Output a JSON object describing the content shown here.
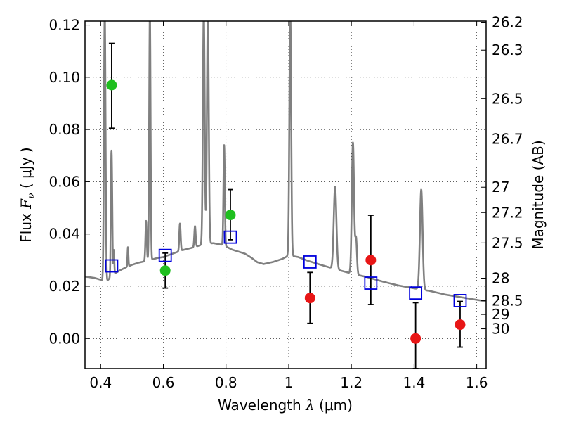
{
  "chart_data": {
    "type": "scatter",
    "title": "",
    "xlabel_pre": "Wavelength  ",
    "xlabel_sym": "λ",
    "xlabel_post": " (μm)",
    "ylabel_pre": "Flux  ",
    "ylabel_sym": "F",
    "ylabel_sub": "ν",
    "ylabel_post": "  ( μJy )",
    "ylabel_right": "Magnitude (AB)",
    "xlim": [
      0.35,
      1.63
    ],
    "ylim": [
      -0.0115,
      0.1215
    ],
    "x_ticks": [
      0.4,
      0.6,
      0.8,
      1.0,
      1.2,
      1.4,
      1.6
    ],
    "x_tick_labels": [
      "0.4",
      "0.6",
      "0.8",
      "1",
      "1.2",
      "1.4",
      "1.6"
    ],
    "y_ticks": [
      0.0,
      0.02,
      0.04,
      0.06,
      0.08,
      0.1,
      0.12
    ],
    "y_tick_labels": [
      "0.00",
      "0.02",
      "0.04",
      "0.06",
      "0.08",
      "0.10",
      "0.12"
    ],
    "mag_ticks": [
      {
        "label": "26.2",
        "flux": 0.1211
      },
      {
        "label": "26.3",
        "flux": 0.1104
      },
      {
        "label": "26.5",
        "flux": 0.0918
      },
      {
        "label": "26.7",
        "flux": 0.0764
      },
      {
        "label": "27",
        "flux": 0.0579
      },
      {
        "label": "27.2",
        "flux": 0.0482
      },
      {
        "label": "27.5",
        "flux": 0.0366
      },
      {
        "label": "28",
        "flux": 0.0231
      },
      {
        "label": "28.5",
        "flux": 0.0145
      },
      {
        "label": "29",
        "flux": 0.0092
      },
      {
        "label": "30",
        "flux": 0.0037
      }
    ],
    "grid": true,
    "series": [
      {
        "marker": "circle",
        "color": "#1fbf1f",
        "points": [
          {
            "x": 0.435,
            "y": 0.097,
            "err_low": 0.0805,
            "err_high": 0.113
          },
          {
            "x": 0.606,
            "y": 0.026,
            "err_low": 0.0193,
            "err_high": 0.0327
          },
          {
            "x": 0.814,
            "y": 0.0473,
            "err_low": 0.0378,
            "err_high": 0.057
          }
        ]
      },
      {
        "marker": "circle",
        "color": "#e81616",
        "points": [
          {
            "x": 1.068,
            "y": 0.0155,
            "err_low": 0.0058,
            "err_high": 0.0253
          },
          {
            "x": 1.262,
            "y": 0.03,
            "err_low": 0.013,
            "err_high": 0.0472
          },
          {
            "x": 1.405,
            "y": 0.0,
            "err_low": -0.0115,
            "err_high": 0.0137
          },
          {
            "x": 1.547,
            "y": 0.0053,
            "err_low": -0.0033,
            "err_high": 0.0142
          }
        ]
      },
      {
        "marker": "square",
        "color": "#0000dd",
        "points": [
          {
            "x": 0.435,
            "y": 0.0278
          },
          {
            "x": 0.606,
            "y": 0.0318
          },
          {
            "x": 0.814,
            "y": 0.0388
          },
          {
            "x": 1.068,
            "y": 0.0293
          },
          {
            "x": 1.262,
            "y": 0.0212
          },
          {
            "x": 1.405,
            "y": 0.0174
          },
          {
            "x": 1.547,
            "y": 0.0145
          }
        ]
      }
    ],
    "model": {
      "color": "#808080",
      "continuum": [
        [
          0.35,
          0.0237
        ],
        [
          0.38,
          0.0232
        ],
        [
          0.4,
          0.0225
        ],
        [
          0.415,
          0.0215
        ],
        [
          0.42,
          0.022
        ],
        [
          0.44,
          0.0245
        ],
        [
          0.46,
          0.026
        ],
        [
          0.48,
          0.0272
        ],
        [
          0.5,
          0.0282
        ],
        [
          0.52,
          0.029
        ],
        [
          0.55,
          0.0298
        ],
        [
          0.58,
          0.0308
        ],
        [
          0.6,
          0.0312
        ],
        [
          0.63,
          0.0325
        ],
        [
          0.66,
          0.0338
        ],
        [
          0.7,
          0.035
        ],
        [
          0.73,
          0.0362
        ],
        [
          0.76,
          0.0365
        ],
        [
          0.79,
          0.0358
        ],
        [
          0.82,
          0.034
        ],
        [
          0.86,
          0.0325
        ],
        [
          0.88,
          0.031
        ],
        [
          0.9,
          0.0292
        ],
        [
          0.92,
          0.0285
        ],
        [
          0.95,
          0.0293
        ],
        [
          0.98,
          0.0305
        ],
        [
          1.0,
          0.0318
        ],
        [
          1.03,
          0.0312
        ],
        [
          1.06,
          0.0298
        ],
        [
          1.1,
          0.0283
        ],
        [
          1.15,
          0.0265
        ],
        [
          1.2,
          0.0249
        ],
        [
          1.25,
          0.0235
        ],
        [
          1.3,
          0.0218
        ],
        [
          1.35,
          0.0203
        ],
        [
          1.4,
          0.0192
        ],
        [
          1.45,
          0.0182
        ],
        [
          1.5,
          0.0168
        ],
        [
          1.55,
          0.0158
        ],
        [
          1.6,
          0.0148
        ],
        [
          1.63,
          0.0142
        ]
      ],
      "lines": [
        {
          "x": 0.413,
          "peak": 0.125,
          "w": 0.0035
        },
        {
          "x": 0.434,
          "peak": 0.067,
          "w": 0.0025
        },
        {
          "x": 0.4365,
          "peak": 0.042,
          "w": 0.002
        },
        {
          "x": 0.442,
          "peak": 0.034,
          "w": 0.002
        },
        {
          "x": 0.487,
          "peak": 0.035,
          "w": 0.002
        },
        {
          "x": 0.545,
          "peak": 0.045,
          "w": 0.003
        },
        {
          "x": 0.557,
          "peak": 0.125,
          "w": 0.003
        },
        {
          "x": 0.653,
          "peak": 0.044,
          "w": 0.003
        },
        {
          "x": 0.701,
          "peak": 0.043,
          "w": 0.003
        },
        {
          "x": 0.729,
          "peak": 0.125,
          "w": 0.004
        },
        {
          "x": 0.742,
          "peak": 0.125,
          "w": 0.004
        },
        {
          "x": 0.794,
          "peak": 0.074,
          "w": 0.003
        },
        {
          "x": 1.005,
          "peak": 0.125,
          "w": 0.004
        },
        {
          "x": 1.148,
          "peak": 0.058,
          "w": 0.006
        },
        {
          "x": 1.205,
          "peak": 0.075,
          "w": 0.005
        },
        {
          "x": 1.215,
          "peak": 0.038,
          "w": 0.004
        },
        {
          "x": 1.423,
          "peak": 0.057,
          "w": 0.006
        }
      ]
    }
  }
}
